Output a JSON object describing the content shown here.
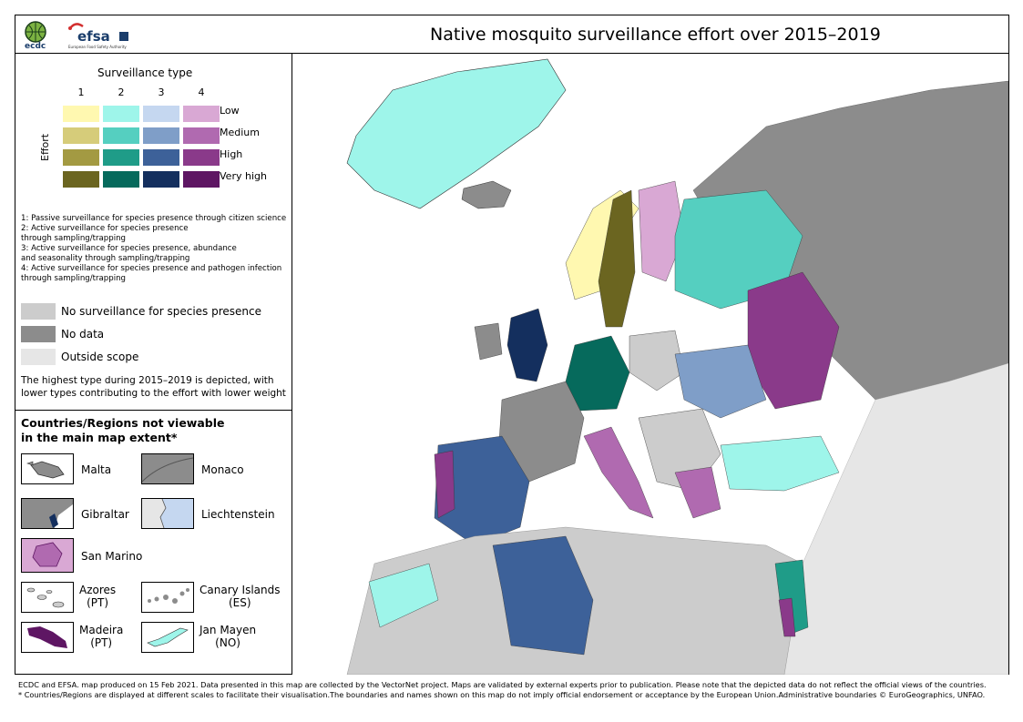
{
  "title": "Native mosquito surveillance effort over 2015–2019",
  "logos": {
    "ecdc": "ecdc",
    "efsa": "efsa",
    "efsa_sub": "European Food Safety Authority"
  },
  "legend": {
    "surveillance_type_title": "Surveillance type",
    "type_numbers": [
      "1",
      "2",
      "3",
      "4"
    ],
    "effort_axis_label": "Effort",
    "effort_levels": [
      "Low",
      "Medium",
      "High",
      "Very high"
    ],
    "colors": {
      "type1": [
        "#fff8b0",
        "#d6cc7a",
        "#a39a42",
        "#6b6520"
      ],
      "type2": [
        "#9ef5ea",
        "#55cfc0",
        "#1f9c88",
        "#066a5c"
      ],
      "type3": [
        "#c5d7f0",
        "#7f9ec8",
        "#3d6199",
        "#142f5e"
      ],
      "type4": [
        "#d9a8d4",
        "#b06ab0",
        "#8a3a8a",
        "#5e1663"
      ]
    },
    "notes": [
      "1: Passive surveillance for species presence through citizen science",
      "2: Active surveillance for species presence",
      "through sampling/trapping",
      "3: Active surveillance for species presence, abundance",
      "and seasonality through sampling/trapping",
      "4: Active surveillance for species presence and pathogen infection",
      "through sampling/trapping"
    ],
    "categories": [
      {
        "label": "No surveillance for species presence",
        "color": "#cccccc"
      },
      {
        "label": "No data",
        "color": "#8c8c8c"
      },
      {
        "label": "Outside scope",
        "color": "#e6e6e6"
      }
    ],
    "highest_note_line1": "The highest type during 2015–2019 is depicted, with",
    "highest_note_line2": "lower types contributing to the effort with lower weight"
  },
  "insets": {
    "title_line1": "Countries/Regions not viewable",
    "title_line2": "in the main map extent*",
    "malta": "Malta",
    "monaco": "Monaco",
    "gibraltar": "Gibraltar",
    "liechtenstein": "Liechtenstein",
    "san_marino": "San Marino",
    "azores": "Azores",
    "azores_sub": "(PT)",
    "canary": "Canary Islands",
    "canary_sub": "(ES)",
    "madeira": "Madeira",
    "madeira_sub": "(PT)",
    "jan_mayen": "Jan Mayen",
    "jan_mayen_sub": "(NO)"
  },
  "footer": {
    "line1": "ECDC and EFSA. map produced on 15 Feb 2021. Data presented in this map are collected by the VectorNet project. Maps are validated by external experts prior to publication. Please note that the depicted data do not reflect the official views of the countries.",
    "line2": "* Countries/Regions are displayed at different scales to facilitate their visualisation.The boundaries and names shown on this map do not imply official endorsement or acceptance by the European Union.Administrative boundaries © EuroGeographics, UNFAO."
  }
}
